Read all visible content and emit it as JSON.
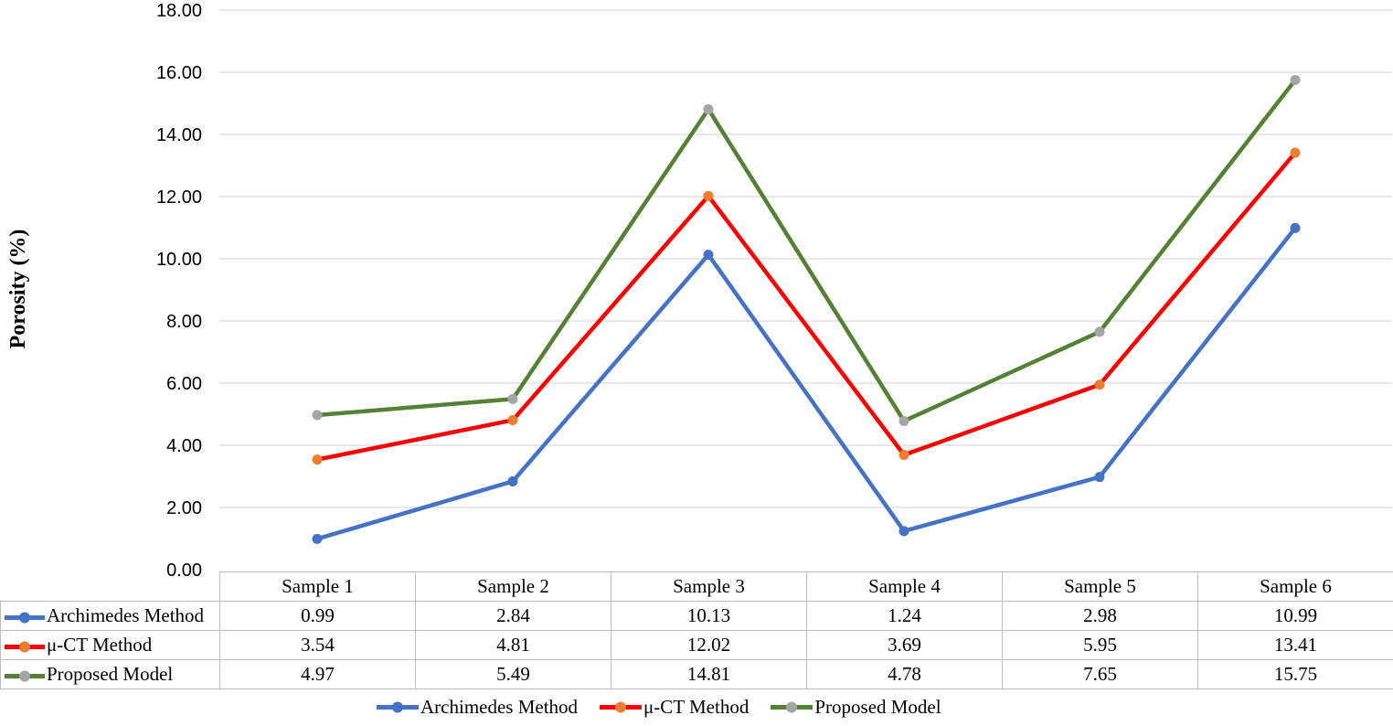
{
  "chart_data": {
    "type": "line",
    "title": "",
    "xlabel": "",
    "ylabel": "Porosity (%)",
    "ylim": [
      0,
      18
    ],
    "ytick_step": 2,
    "ytick_decimals": 2,
    "grid": true,
    "legend_position": "bottom",
    "categories": [
      "Sample 1",
      "Sample 2",
      "Sample 3",
      "Sample 4",
      "Sample 5",
      "Sample 6"
    ],
    "series": [
      {
        "name": "Archimedes Method",
        "values": [
          0.99,
          2.84,
          10.13,
          1.24,
          2.98,
          10.99
        ],
        "line_color": "#4472C4",
        "marker_color": "#4472C4"
      },
      {
        "name": "μ-CT Method",
        "values": [
          3.54,
          4.81,
          12.02,
          3.69,
          5.95,
          13.41
        ],
        "line_color": "#FF0000",
        "marker_color": "#ED7D31"
      },
      {
        "name": "Proposed Model",
        "values": [
          4.97,
          5.49,
          14.81,
          4.78,
          7.65,
          15.75
        ],
        "line_color": "#548235",
        "marker_color": "#A5A5A5"
      }
    ],
    "colors": {
      "gridline": "#D9D9D9",
      "table_border": "#BFBFBF",
      "tick_text": "#000000",
      "axis_title_text": "#000000"
    }
  }
}
